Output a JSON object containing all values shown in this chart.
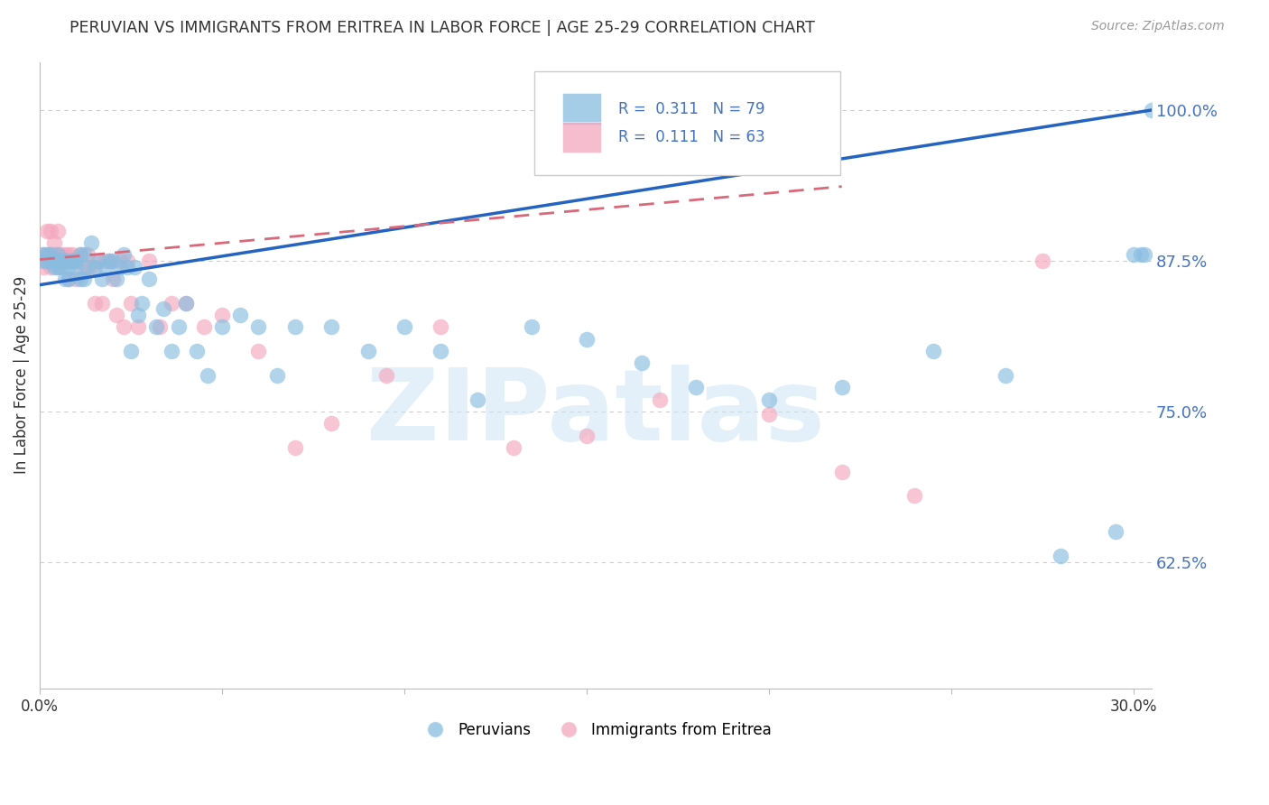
{
  "title": "PERUVIAN VS IMMIGRANTS FROM ERITREA IN LABOR FORCE | AGE 25-29 CORRELATION CHART",
  "source": "Source: ZipAtlas.com",
  "ylabel": "In Labor Force | Age 25-29",
  "ytick_labels": [
    "100.0%",
    "87.5%",
    "75.0%",
    "62.5%"
  ],
  "ytick_values": [
    1.0,
    0.875,
    0.75,
    0.625
  ],
  "ylim": [
    0.52,
    1.04
  ],
  "xlim": [
    0.0,
    0.305
  ],
  "blue_R": 0.311,
  "blue_N": 79,
  "pink_R": 0.111,
  "pink_N": 63,
  "blue_color": "#89bde0",
  "pink_color": "#f4a7be",
  "trend_blue_color": "#2563c0",
  "trend_pink_color": "#d9687a",
  "background_color": "#ffffff",
  "grid_color": "#cccccc",
  "title_color": "#333333",
  "right_axis_color": "#4472c4",
  "watermark": "ZIPatlas",
  "blue_scatter_x": [
    0.001,
    0.001,
    0.002,
    0.002,
    0.003,
    0.003,
    0.003,
    0.004,
    0.004,
    0.004,
    0.005,
    0.005,
    0.005,
    0.005,
    0.006,
    0.006,
    0.006,
    0.007,
    0.007,
    0.007,
    0.008,
    0.008,
    0.008,
    0.009,
    0.009,
    0.01,
    0.01,
    0.011,
    0.011,
    0.012,
    0.012,
    0.013,
    0.014,
    0.015,
    0.016,
    0.017,
    0.018,
    0.019,
    0.02,
    0.021,
    0.022,
    0.023,
    0.024,
    0.025,
    0.026,
    0.027,
    0.028,
    0.03,
    0.032,
    0.034,
    0.036,
    0.038,
    0.04,
    0.043,
    0.046,
    0.05,
    0.055,
    0.06,
    0.065,
    0.07,
    0.08,
    0.09,
    0.1,
    0.11,
    0.12,
    0.135,
    0.15,
    0.165,
    0.18,
    0.2,
    0.22,
    0.245,
    0.265,
    0.28,
    0.295,
    0.3,
    0.302,
    0.303,
    0.305
  ],
  "blue_scatter_y": [
    0.875,
    0.88,
    0.875,
    0.88,
    0.875,
    0.875,
    0.88,
    0.875,
    0.875,
    0.87,
    0.875,
    0.875,
    0.87,
    0.88,
    0.875,
    0.875,
    0.87,
    0.875,
    0.875,
    0.86,
    0.875,
    0.86,
    0.87,
    0.875,
    0.875,
    0.87,
    0.875,
    0.88,
    0.86,
    0.88,
    0.86,
    0.87,
    0.89,
    0.87,
    0.875,
    0.86,
    0.87,
    0.875,
    0.875,
    0.86,
    0.87,
    0.88,
    0.87,
    0.8,
    0.87,
    0.83,
    0.84,
    0.86,
    0.82,
    0.835,
    0.8,
    0.82,
    0.84,
    0.8,
    0.78,
    0.82,
    0.83,
    0.82,
    0.78,
    0.82,
    0.82,
    0.8,
    0.82,
    0.8,
    0.76,
    0.82,
    0.81,
    0.79,
    0.77,
    0.76,
    0.77,
    0.8,
    0.78,
    0.63,
    0.65,
    0.88,
    0.88,
    0.88,
    1.0
  ],
  "pink_scatter_x": [
    0.001,
    0.001,
    0.001,
    0.002,
    0.002,
    0.002,
    0.002,
    0.003,
    0.003,
    0.003,
    0.003,
    0.004,
    0.004,
    0.004,
    0.004,
    0.005,
    0.005,
    0.005,
    0.005,
    0.006,
    0.006,
    0.006,
    0.007,
    0.007,
    0.008,
    0.008,
    0.009,
    0.01,
    0.01,
    0.011,
    0.012,
    0.013,
    0.014,
    0.015,
    0.016,
    0.017,
    0.018,
    0.019,
    0.02,
    0.021,
    0.022,
    0.023,
    0.024,
    0.025,
    0.027,
    0.03,
    0.033,
    0.036,
    0.04,
    0.045,
    0.05,
    0.06,
    0.07,
    0.08,
    0.095,
    0.11,
    0.13,
    0.15,
    0.17,
    0.2,
    0.22,
    0.24,
    0.275
  ],
  "pink_scatter_y": [
    0.88,
    0.875,
    0.87,
    0.9,
    0.875,
    0.875,
    0.88,
    0.9,
    0.88,
    0.875,
    0.87,
    0.89,
    0.875,
    0.875,
    0.88,
    0.875,
    0.9,
    0.87,
    0.88,
    0.88,
    0.875,
    0.875,
    0.88,
    0.875,
    0.88,
    0.86,
    0.88,
    0.875,
    0.86,
    0.88,
    0.87,
    0.88,
    0.87,
    0.84,
    0.875,
    0.84,
    0.875,
    0.875,
    0.86,
    0.83,
    0.875,
    0.82,
    0.875,
    0.84,
    0.82,
    0.875,
    0.82,
    0.84,
    0.84,
    0.82,
    0.83,
    0.8,
    0.72,
    0.74,
    0.78,
    0.82,
    0.72,
    0.73,
    0.76,
    0.748,
    0.7,
    0.68,
    0.875
  ],
  "legend_blue_label": "Peruvians",
  "legend_pink_label": "Immigrants from Eritrea"
}
